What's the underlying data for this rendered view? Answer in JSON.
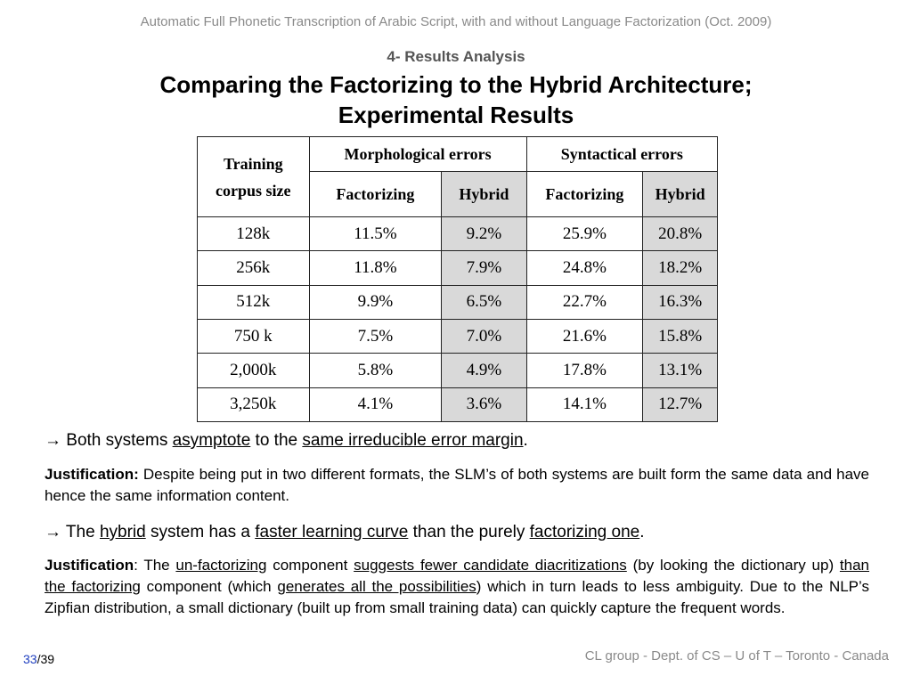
{
  "header": "Automatic Full Phonetic Transcription of Arabic Script, with and without Language Factorization (Oct. 2009)",
  "section": "4- Results Analysis",
  "title_line1": "Comparing the Factorizing to the Hybrid Architecture;",
  "title_line2": "Experimental Results",
  "table": {
    "corpus_header_line1": "Training",
    "corpus_header_line2": "corpus size",
    "group_morph": "Morphological errors",
    "group_synt": "Syntactical errors",
    "col_factorizing": "Factorizing",
    "col_hybrid": "Hybrid",
    "rows": [
      {
        "size": "128k",
        "mf": "11.5%",
        "mh": "9.2%",
        "sf": "25.9%",
        "sh": "20.8%"
      },
      {
        "size": "256k",
        "mf": "11.8%",
        "mh": "7.9%",
        "sf": "24.8%",
        "sh": "18.2%"
      },
      {
        "size": "512k",
        "mf": "9.9%",
        "mh": "6.5%",
        "sf": "22.7%",
        "sh": "16.3%"
      },
      {
        "size": "750 k",
        "mf": "7.5%",
        "mh": "7.0%",
        "sf": "21.6%",
        "sh": "15.8%"
      },
      {
        "size": "2,000k",
        "mf": "5.8%",
        "mh": "4.9%",
        "sf": "17.8%",
        "sh": "13.1%"
      },
      {
        "size": "3,250k",
        "mf": "4.1%",
        "mh": "3.6%",
        "sf": "14.1%",
        "sh": "12.7%"
      }
    ]
  },
  "bullet1": {
    "arrow": "→",
    "t1": " Both systems ",
    "u1": "asymptote",
    "t2": " to the ",
    "u2": "same irreducible error margin",
    "t3": "."
  },
  "just1": {
    "label": "Justification:",
    "text": " Despite being put in two different formats, the SLM’s of both systems are built form the same data and have hence the same information content."
  },
  "bullet2": {
    "arrow": "→",
    "t1": " The ",
    "u1": "hybrid",
    "t2": " system has a ",
    "u2": "faster learning curve",
    "t3": " than the purely ",
    "u3": "factorizing one",
    "t4": "."
  },
  "just2": {
    "label": "Justification",
    "t1": ": The ",
    "u1": "un-factorizing",
    "t2": " component ",
    "u2": "suggests fewer candidate diacritizations",
    "t3": " (by looking the dictionary up) ",
    "u3": "than the factorizing",
    "t4": " component (which ",
    "u4": "generates all the possibilities",
    "t5": ") which in turn leads to less ambiguity. Due to the NLP’s Zipfian distribution, a small dictionary (built up from small training data) can quickly capture the frequent words."
  },
  "page": {
    "current": "33",
    "sep": "/",
    "total": "39"
  },
  "footer": "CL  group - Dept. of CS – U of T – Toronto - Canada"
}
